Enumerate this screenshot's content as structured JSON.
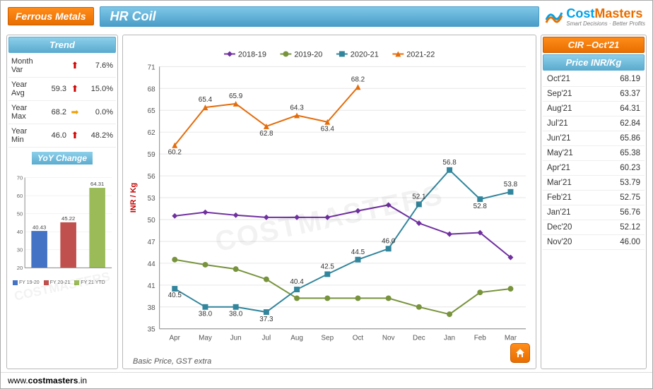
{
  "header": {
    "category": "Ferrous Metals",
    "title": "HR Coil",
    "brand_part1": "Cost",
    "brand_part2": "Masters",
    "brand_tagline": "Smart Decisions · Better Profits"
  },
  "trend": {
    "title": "Trend",
    "rows": [
      {
        "label": "Month Var",
        "value": "",
        "arrow": "up",
        "pct": "7.6%"
      },
      {
        "label": "Year Avg",
        "value": "59.3",
        "arrow": "up",
        "pct": "15.0%"
      },
      {
        "label": "Year Max",
        "value": "68.2",
        "arrow": "flat",
        "pct": "0.0%"
      },
      {
        "label": "Year Min",
        "value": "46.0",
        "arrow": "up",
        "pct": "48.2%"
      }
    ]
  },
  "yoy": {
    "title": "YoY Change",
    "ylim": [
      20,
      70
    ],
    "ytick_step": 10,
    "bars": [
      {
        "label": "FY 19-20",
        "value": 40.43,
        "valueLabel": "40.43",
        "color": "#4472c4"
      },
      {
        "label": "FY 20-21",
        "value": 45.22,
        "valueLabel": "45.22",
        "color": "#c0504d"
      },
      {
        "label": "FY 21 YTD",
        "value": 64.31,
        "valueLabel": "64.31",
        "color": "#9bbb59"
      }
    ],
    "grid_color": "#e6e6e6",
    "axis_color": "#888888",
    "font_size": 8
  },
  "cir": {
    "title": "CIR –Oct'21",
    "price_label": "Price  INR/Kg",
    "rows": [
      {
        "month": "Oct'21",
        "price": "68.19"
      },
      {
        "month": "Sep'21",
        "price": "63.37"
      },
      {
        "month": "Aug'21",
        "price": "64.31"
      },
      {
        "month": "Jul'21",
        "price": "62.84"
      },
      {
        "month": "Jun'21",
        "price": "65.86"
      },
      {
        "month": "May'21",
        "price": "65.38"
      },
      {
        "month": "Apr'21",
        "price": "60.23"
      },
      {
        "month": "Mar'21",
        "price": "53.79"
      },
      {
        "month": "Feb'21",
        "price": "52.75"
      },
      {
        "month": "Jan'21",
        "price": "56.76"
      },
      {
        "month": "Dec'20",
        "price": "52.12"
      },
      {
        "month": "Nov'20",
        "price": "46.00"
      }
    ]
  },
  "main_chart": {
    "type": "line",
    "ylabel": "INR / Kg",
    "ylim": [
      35,
      71
    ],
    "ytick_step": 3,
    "months": [
      "Apr",
      "May",
      "Jun",
      "Jul",
      "Aug",
      "Sep",
      "Oct",
      "Nov",
      "Dec",
      "Jan",
      "Feb",
      "Mar"
    ],
    "series": [
      {
        "name": "2018-19",
        "color": "#7030a0",
        "marker": "diamond",
        "values": [
          50.5,
          51.0,
          50.6,
          50.3,
          50.3,
          50.3,
          51.2,
          52.0,
          49.5,
          48.0,
          48.2,
          44.8
        ],
        "labels": []
      },
      {
        "name": "2019-20",
        "color": "#77933c",
        "marker": "circle",
        "values": [
          44.5,
          43.8,
          43.2,
          41.8,
          39.2,
          39.2,
          39.2,
          39.2,
          38.0,
          37.0,
          40.0,
          40.5
        ],
        "labels": []
      },
      {
        "name": "2020-21",
        "color": "#31859c",
        "marker": "square",
        "values": [
          40.5,
          38.0,
          38.0,
          37.3,
          40.4,
          42.5,
          44.5,
          46.0,
          52.1,
          56.8,
          52.8,
          53.8
        ],
        "labels": [
          {
            "i": 0,
            "text": "40.5",
            "dy": 12
          },
          {
            "i": 1,
            "text": "38.0",
            "dy": 13
          },
          {
            "i": 2,
            "text": "38.0",
            "dy": 13
          },
          {
            "i": 3,
            "text": "37.3",
            "dy": 13
          },
          {
            "i": 4,
            "text": "40.4",
            "dy": -8
          },
          {
            "i": 5,
            "text": "42.5",
            "dy": -8
          },
          {
            "i": 6,
            "text": "44.5",
            "dy": -8
          },
          {
            "i": 7,
            "text": "46.0",
            "dy": -8
          },
          {
            "i": 8,
            "text": "52.1",
            "dy": -8
          },
          {
            "i": 9,
            "text": "56.8",
            "dy": -8
          },
          {
            "i": 10,
            "text": "52.8",
            "dy": 13
          },
          {
            "i": 11,
            "text": "53.8",
            "dy": -8
          }
        ]
      },
      {
        "name": "2021-22",
        "color": "#e46c0a",
        "marker": "triangle",
        "values": [
          60.2,
          65.4,
          65.9,
          62.8,
          64.3,
          63.4,
          68.2,
          null,
          null,
          null,
          null,
          null
        ],
        "labels": [
          {
            "i": 0,
            "text": "60.2",
            "dy": 13
          },
          {
            "i": 1,
            "text": "65.4",
            "dy": -8
          },
          {
            "i": 2,
            "text": "65.9",
            "dy": -8
          },
          {
            "i": 3,
            "text": "62.8",
            "dy": 13
          },
          {
            "i": 4,
            "text": "64.3",
            "dy": -8
          },
          {
            "i": 5,
            "text": "63.4",
            "dy": 13
          },
          {
            "i": 6,
            "text": "68.2",
            "dy": -8
          }
        ]
      }
    ],
    "grid_color": "#e6e6e6",
    "axis_color": "#888888",
    "label_color": "#c00000",
    "tick_font_size": 10,
    "data_label_font_size": 10,
    "note": "Basic Price, GST extra"
  },
  "footer": {
    "url_prefix": "www.",
    "url_bold": "costmasters",
    "url_suffix": ".in"
  },
  "watermark": "COSTMASTERS"
}
